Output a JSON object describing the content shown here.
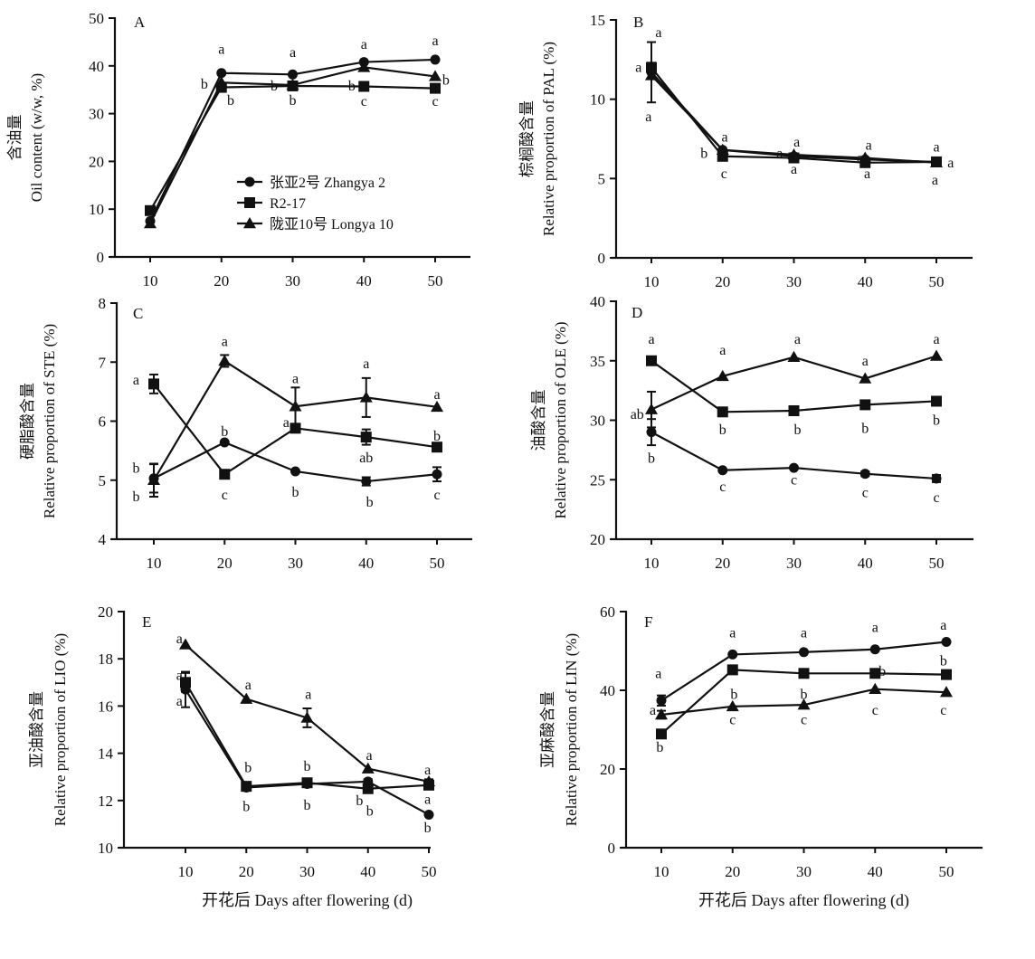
{
  "chart_data": [
    {
      "type": "line",
      "panel": "A",
      "title": "",
      "ylabel_cn": "含油量",
      "ylabel": "Oil content (w/w, %)",
      "xlabel": "",
      "x": [
        10,
        20,
        30,
        40,
        50
      ],
      "xticks": [
        "10",
        "20",
        "30",
        "40",
        "50"
      ],
      "ylim": [
        0,
        50
      ],
      "yticks": [
        0,
        10,
        20,
        30,
        40,
        50
      ],
      "series": [
        {
          "name": "张亚2号 Zhangya 2",
          "marker": "circle",
          "values": [
            7.5,
            38.5,
            38.2,
            40.8,
            41.3
          ]
        },
        {
          "name": "R2-17",
          "marker": "square",
          "values": [
            9.7,
            35.5,
            35.8,
            35.7,
            35.3
          ]
        },
        {
          "name": "陇亚10号 Longya 10",
          "marker": "triangle",
          "values": [
            7.0,
            36.5,
            36.0,
            39.7,
            37.8
          ]
        }
      ],
      "annotations": [
        {
          "x": 20,
          "y": 43.5,
          "text": "a"
        },
        {
          "x": 17.6,
          "y": 36.2,
          "text": "b"
        },
        {
          "x": 21.3,
          "y": 32.8,
          "text": "b"
        },
        {
          "x": 30,
          "y": 42.8,
          "text": "a"
        },
        {
          "x": 27.4,
          "y": 35.8,
          "text": "b"
        },
        {
          "x": 30,
          "y": 32.8,
          "text": "b"
        },
        {
          "x": 40,
          "y": 44.5,
          "text": "a"
        },
        {
          "x": 38.3,
          "y": 35.8,
          "text": "b"
        },
        {
          "x": 40,
          "y": 32.6,
          "text": "c"
        },
        {
          "x": 50,
          "y": 45.3,
          "text": "a"
        },
        {
          "x": 51.5,
          "y": 37.0,
          "text": "b"
        },
        {
          "x": 50,
          "y": 32.6,
          "text": "c"
        }
      ],
      "legend": "inside-lower-right"
    },
    {
      "type": "line",
      "panel": "B",
      "ylabel_cn": "棕榈酸含量",
      "ylabel": "Relative proportion of PAL (%)",
      "xlabel": "",
      "x": [
        10,
        20,
        30,
        40,
        50
      ],
      "xticks": [
        "10",
        "20",
        "30",
        "40",
        "50"
      ],
      "ylim": [
        0,
        15
      ],
      "yticks": [
        0,
        5,
        10,
        15
      ],
      "series": [
        {
          "name": "张亚2号 Zhangya 2",
          "marker": "circle",
          "values": [
            11.7,
            6.8,
            6.4,
            6.2,
            6.05
          ],
          "errors": [
            1.9,
            0.1,
            0.1,
            0.1,
            0.1
          ]
        },
        {
          "name": "R2-17",
          "marker": "square",
          "values": [
            12.0,
            6.4,
            6.3,
            6.0,
            6.05
          ],
          "errors": [
            0.3,
            0.1,
            0.1,
            0.1,
            0.1
          ]
        },
        {
          "name": "陇亚10号 Longya 10",
          "marker": "triangle",
          "values": [
            11.5,
            6.8,
            6.5,
            6.3,
            6.0
          ],
          "errors": [
            0.2,
            0.1,
            0.1,
            0.1,
            0.1
          ]
        }
      ],
      "annotations": [
        {
          "x": 11.0,
          "y": 14.2,
          "text": "a"
        },
        {
          "x": 8.2,
          "y": 12.0,
          "text": "a"
        },
        {
          "x": 9.6,
          "y": 8.9,
          "text": "a"
        },
        {
          "x": 20.3,
          "y": 7.6,
          "text": "a"
        },
        {
          "x": 17.4,
          "y": 6.6,
          "text": "b"
        },
        {
          "x": 20.2,
          "y": 5.3,
          "text": "c"
        },
        {
          "x": 30.4,
          "y": 7.3,
          "text": "a"
        },
        {
          "x": 28.0,
          "y": 6.6,
          "text": "a"
        },
        {
          "x": 30.0,
          "y": 5.6,
          "text": "a"
        },
        {
          "x": 40.5,
          "y": 7.1,
          "text": "a"
        },
        {
          "x": 39.3,
          "y": 6.3,
          "text": "a"
        },
        {
          "x": 40.3,
          "y": 5.3,
          "text": "a"
        },
        {
          "x": 50.0,
          "y": 7.0,
          "text": "a"
        },
        {
          "x": 52.0,
          "y": 6.0,
          "text": "a"
        },
        {
          "x": 49.8,
          "y": 4.9,
          "text": "a"
        }
      ]
    },
    {
      "type": "line",
      "panel": "C",
      "ylabel_cn": "硬脂酸含量",
      "ylabel": "Relative proportion of STE (%)",
      "xlabel": "",
      "x": [
        10,
        20,
        30,
        40,
        50
      ],
      "xticks": [
        "10",
        "20",
        "30",
        "40",
        "50"
      ],
      "ylim": [
        4,
        8
      ],
      "yticks": [
        4,
        5,
        6,
        7,
        8
      ],
      "series": [
        {
          "name": "张亚2号 Zhangya 2",
          "marker": "circle",
          "values": [
            5.03,
            5.64,
            5.15,
            4.98,
            5.1
          ],
          "errors": [
            0.24,
            0.03,
            0.03,
            0.07,
            0.12
          ]
        },
        {
          "name": "R2-17",
          "marker": "square",
          "values": [
            6.63,
            5.1,
            5.88,
            5.73,
            5.56
          ],
          "errors": [
            0.16,
            0.03,
            0.03,
            0.13,
            0.03
          ]
        },
        {
          "name": "陇亚10号 Longya 10",
          "marker": "triangle",
          "values": [
            5.0,
            7.02,
            6.25,
            6.4,
            6.24
          ],
          "errors": [
            0.28,
            0.1,
            0.32,
            0.33,
            0.03
          ]
        }
      ],
      "annotations": [
        {
          "x": 7.5,
          "y": 6.7,
          "text": "a"
        },
        {
          "x": 7.5,
          "y": 5.2,
          "text": "b"
        },
        {
          "x": 7.5,
          "y": 4.72,
          "text": "b"
        },
        {
          "x": 20,
          "y": 7.35,
          "text": "a"
        },
        {
          "x": 20,
          "y": 5.82,
          "text": "b"
        },
        {
          "x": 20,
          "y": 4.75,
          "text": "c"
        },
        {
          "x": 30,
          "y": 6.72,
          "text": "a"
        },
        {
          "x": 28.7,
          "y": 5.98,
          "text": "a"
        },
        {
          "x": 30,
          "y": 4.8,
          "text": "b"
        },
        {
          "x": 40,
          "y": 6.97,
          "text": "a"
        },
        {
          "x": 40,
          "y": 5.38,
          "text": "ab"
        },
        {
          "x": 40.5,
          "y": 4.63,
          "text": "b"
        },
        {
          "x": 50,
          "y": 6.45,
          "text": "a"
        },
        {
          "x": 50,
          "y": 5.75,
          "text": "b"
        },
        {
          "x": 50,
          "y": 4.75,
          "text": "c"
        }
      ]
    },
    {
      "type": "line",
      "panel": "D",
      "ylabel_cn": "油酸含量",
      "ylabel": "Relative proportion of OLE (%)",
      "xlabel": "",
      "x": [
        10,
        20,
        30,
        40,
        50
      ],
      "xticks": [
        "10",
        "20",
        "30",
        "40",
        "50"
      ],
      "ylim": [
        20,
        40
      ],
      "yticks": [
        20,
        25,
        30,
        35,
        40
      ],
      "series": [
        {
          "name": "张亚2号 Zhangya 2",
          "marker": "circle",
          "values": [
            29.0,
            25.8,
            26.0,
            25.5,
            25.1
          ],
          "errors": [
            1.1,
            0.1,
            0.1,
            0.2,
            0.3
          ]
        },
        {
          "name": "R2-17",
          "marker": "square",
          "values": [
            35.0,
            30.7,
            30.8,
            31.3,
            31.6
          ],
          "errors": [
            0.1,
            0.3,
            0.1,
            0.2,
            0.1
          ]
        },
        {
          "name": "陇亚10号 Longya 10",
          "marker": "triangle",
          "values": [
            30.9,
            33.7,
            35.3,
            33.5,
            35.4
          ],
          "errors": [
            1.5,
            0.1,
            0.1,
            0.1,
            0.1
          ]
        }
      ],
      "annotations": [
        {
          "x": 10,
          "y": 36.8,
          "text": "a"
        },
        {
          "x": 8.0,
          "y": 30.5,
          "text": "ab"
        },
        {
          "x": 10,
          "y": 26.8,
          "text": "b"
        },
        {
          "x": 20,
          "y": 35.9,
          "text": "a"
        },
        {
          "x": 20,
          "y": 29.2,
          "text": "b"
        },
        {
          "x": 20,
          "y": 24.4,
          "text": "c"
        },
        {
          "x": 30.5,
          "y": 36.8,
          "text": "a"
        },
        {
          "x": 30.5,
          "y": 29.2,
          "text": "b"
        },
        {
          "x": 30,
          "y": 25.0,
          "text": "c"
        },
        {
          "x": 40,
          "y": 35.0,
          "text": "a"
        },
        {
          "x": 40,
          "y": 29.3,
          "text": "b"
        },
        {
          "x": 40,
          "y": 23.9,
          "text": "c"
        },
        {
          "x": 50,
          "y": 36.8,
          "text": "a"
        },
        {
          "x": 50,
          "y": 30.0,
          "text": "b"
        },
        {
          "x": 50,
          "y": 23.5,
          "text": "c"
        }
      ]
    },
    {
      "type": "line",
      "panel": "E",
      "ylabel_cn": "亚油酸含量",
      "ylabel": "Relative proportion of LIO (%)",
      "xlabel": "开花后 Days after flowering (d)",
      "x": [
        10,
        20,
        30,
        40,
        50
      ],
      "xticks": [
        "10",
        "20",
        "30",
        "40",
        "50"
      ],
      "ylim": [
        10,
        20
      ],
      "yticks": [
        10,
        12,
        14,
        16,
        18,
        20
      ],
      "series": [
        {
          "name": "张亚2号 Zhangya 2",
          "marker": "circle",
          "values": [
            16.7,
            12.55,
            12.7,
            12.8,
            11.4
          ],
          "errors": [
            0.75,
            0.1,
            0.05,
            0.1,
            0.05
          ]
        },
        {
          "name": "R2-17",
          "marker": "square",
          "values": [
            17.0,
            12.6,
            12.75,
            12.5,
            12.65
          ],
          "errors": [
            0.4,
            0.15,
            0.1,
            0.1,
            0.15
          ]
        },
        {
          "name": "陇亚10号 Longya 10",
          "marker": "triangle",
          "values": [
            18.6,
            16.3,
            15.5,
            13.35,
            12.8
          ],
          "errors": [
            0.05,
            0.05,
            0.4,
            0.05,
            0.1
          ]
        }
      ],
      "annotations": [
        {
          "x": 9.0,
          "y": 18.85,
          "text": "a"
        },
        {
          "x": 9.0,
          "y": 17.3,
          "text": "a"
        },
        {
          "x": 9.0,
          "y": 16.2,
          "text": "a"
        },
        {
          "x": 20.3,
          "y": 16.9,
          "text": "a"
        },
        {
          "x": 20.3,
          "y": 13.4,
          "text": "b"
        },
        {
          "x": 20.0,
          "y": 11.75,
          "text": "b"
        },
        {
          "x": 30.2,
          "y": 16.5,
          "text": "a"
        },
        {
          "x": 30.0,
          "y": 13.45,
          "text": "b"
        },
        {
          "x": 30.0,
          "y": 11.8,
          "text": "b"
        },
        {
          "x": 40.2,
          "y": 13.9,
          "text": "a"
        },
        {
          "x": 38.6,
          "y": 12.0,
          "text": "b"
        },
        {
          "x": 40.3,
          "y": 11.55,
          "text": "b"
        },
        {
          "x": 49.8,
          "y": 13.3,
          "text": "a"
        },
        {
          "x": 49.8,
          "y": 12.05,
          "text": "a"
        },
        {
          "x": 49.8,
          "y": 10.85,
          "text": "b"
        }
      ]
    },
    {
      "type": "line",
      "panel": "F",
      "ylabel_cn": "亚麻酸含量",
      "ylabel": "Relative proportion of LIN (%)",
      "xlabel": "开花后 Days after flowering (d)",
      "x": [
        10,
        20,
        30,
        40,
        50
      ],
      "xticks": [
        "10",
        "20",
        "30",
        "40",
        "50"
      ],
      "ylim": [
        0,
        60
      ],
      "yticks": [
        0,
        20,
        40,
        60
      ],
      "series": [
        {
          "name": "张亚2号 Zhangya 2",
          "marker": "circle",
          "values": [
            37.4,
            49.1,
            49.7,
            50.4,
            52.3
          ],
          "errors": [
            1.3,
            0.3,
            0.3,
            0.3,
            0.3
          ]
        },
        {
          "name": "R2-17",
          "marker": "square",
          "values": [
            28.9,
            45.2,
            44.3,
            44.3,
            44.0
          ],
          "errors": [
            0.3,
            0.3,
            0.3,
            0.3,
            0.3
          ]
        },
        {
          "name": "陇亚10号 Longya 10",
          "marker": "triangle",
          "values": [
            33.8,
            35.9,
            36.3,
            40.3,
            39.5
          ],
          "errors": [
            1.0,
            0.3,
            0.3,
            0.3,
            0.3
          ]
        }
      ],
      "annotations": [
        {
          "x": 9.6,
          "y": 44.2,
          "text": "a"
        },
        {
          "x": 8.8,
          "y": 35.0,
          "text": "a"
        },
        {
          "x": 9.8,
          "y": 25.5,
          "text": "b"
        },
        {
          "x": 20,
          "y": 54.6,
          "text": "a"
        },
        {
          "x": 20.2,
          "y": 39.0,
          "text": "b"
        },
        {
          "x": 20,
          "y": 32.5,
          "text": "c"
        },
        {
          "x": 30,
          "y": 54.6,
          "text": "a"
        },
        {
          "x": 30,
          "y": 39.0,
          "text": "b"
        },
        {
          "x": 30,
          "y": 32.5,
          "text": "c"
        },
        {
          "x": 40,
          "y": 56.0,
          "text": "a"
        },
        {
          "x": 41.0,
          "y": 44.8,
          "text": "b"
        },
        {
          "x": 40,
          "y": 35.0,
          "text": "c"
        },
        {
          "x": 49.6,
          "y": 56.5,
          "text": "a"
        },
        {
          "x": 49.6,
          "y": 47.5,
          "text": "b"
        },
        {
          "x": 49.6,
          "y": 35.0,
          "text": "c"
        }
      ]
    }
  ],
  "legend_items": [
    {
      "label": "张亚2号 Zhangya 2",
      "marker": "circle"
    },
    {
      "label": "R2-17",
      "marker": "square"
    },
    {
      "label": "陇亚10号 Longya 10",
      "marker": "triangle"
    }
  ],
  "colors": {
    "ink": "#111111",
    "background": "#ffffff"
  }
}
